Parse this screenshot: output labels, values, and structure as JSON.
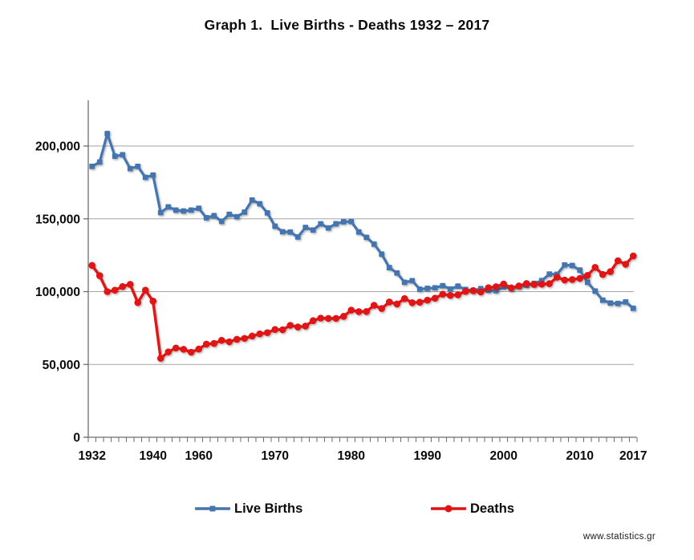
{
  "page": {
    "title": "Graph 1.  Live Births - Deaths 1932 – 2017",
    "watermark": "www.statistics.gr"
  },
  "legend": {
    "items": [
      {
        "label": "Live Births",
        "marker": "square",
        "color": "#4575AE"
      },
      {
        "label": "Deaths",
        "marker": "circle",
        "color": "#E01212"
      }
    ]
  },
  "chart_data": {
    "type": "line",
    "title": "Graph 1.  Live Births - Deaths 1932 – 2017",
    "xlabel": "",
    "ylabel": "",
    "grid": "horizontal-only",
    "legend_position": "bottom",
    "note": "Categorical x axis: yearly data 1932-1940 and 1955-2017; war years 1941-1954 absent, line connects 1940 directly to 1955.",
    "ylim": [
      0,
      231000
    ],
    "yticks": [
      0,
      50000,
      100000,
      150000,
      200000
    ],
    "ytick_labels": [
      "0",
      "50,000",
      "100,000",
      "150,000",
      "200,000"
    ],
    "xtick_labels": [
      {
        "label": "1932",
        "index": 0
      },
      {
        "label": "1940",
        "index": 8
      },
      {
        "label": "1960",
        "index": 14
      },
      {
        "label": "1970",
        "index": 24
      },
      {
        "label": "1980",
        "index": 34
      },
      {
        "label": "1990",
        "index": 44
      },
      {
        "label": "2000",
        "index": 54
      },
      {
        "label": "2010",
        "index": 64
      },
      {
        "label": "2017",
        "index": 71
      }
    ],
    "x_categories": [
      "1932",
      "1933",
      "1934",
      "1935",
      "1936",
      "1937",
      "1938",
      "1939",
      "1940",
      "1955",
      "1956",
      "1957",
      "1958",
      "1959",
      "1960",
      "1961",
      "1962",
      "1963",
      "1964",
      "1965",
      "1966",
      "1967",
      "1968",
      "1969",
      "1970",
      "1971",
      "1972",
      "1973",
      "1974",
      "1975",
      "1976",
      "1977",
      "1978",
      "1979",
      "1980",
      "1981",
      "1982",
      "1983",
      "1984",
      "1985",
      "1986",
      "1987",
      "1988",
      "1989",
      "1990",
      "1991",
      "1992",
      "1993",
      "1994",
      "1995",
      "1996",
      "1997",
      "1998",
      "1999",
      "2000",
      "2001",
      "2002",
      "2003",
      "2004",
      "2005",
      "2006",
      "2007",
      "2008",
      "2009",
      "2010",
      "2011",
      "2012",
      "2013",
      "2014",
      "2015",
      "2016",
      "2017"
    ],
    "series": [
      {
        "name": "Live Births",
        "color": "#4575AE",
        "marker": "square",
        "values": [
          186000,
          189000,
          208500,
          193000,
          194000,
          184500,
          186000,
          178500,
          180000,
          154263,
          158203,
          155960,
          155359,
          156000,
          157239,
          150716,
          152158,
          148249,
          153109,
          151448,
          154613,
          162839,
          160338,
          154077,
          144928,
          141126,
          140891,
          137526,
          144069,
          142273,
          146566,
          143739,
          146588,
          147965,
          148134,
          140953,
          137275,
          132608,
          125724,
          116481,
          112810,
          106392,
          107505,
          101657,
          102229,
          102620,
          104081,
          101799,
          103763,
          101495,
          100718,
          102038,
          100894,
          100643,
          103274,
          102282,
          103569,
          104420,
          105655,
          107545,
          112042,
          111926,
          118302,
          117933,
          114766,
          106428,
          100371,
          94134,
          92148,
          91847,
          92898,
          88553
        ]
      },
      {
        "name": "Deaths",
        "color": "#E01212",
        "marker": "circle",
        "values": [
          118000,
          111000,
          100000,
          101000,
          103500,
          105000,
          92500,
          101000,
          93500,
          54200,
          58600,
          61300,
          60400,
          58400,
          60563,
          63955,
          64425,
          66554,
          65554,
          67269,
          67912,
          69500,
          71000,
          71825,
          74009,
          73819,
          76859,
          75724,
          76363,
          80077,
          81818,
          81615,
          81616,
          83000,
          87282,
          86261,
          86345,
          90586,
          88397,
          92886,
          91469,
          95235,
          92407,
          92717,
          94152,
          95498,
          98231,
          97419,
          97807,
          100158,
          100740,
          99738,
          102668,
          103340,
          105219,
          102559,
          103915,
          105529,
          104942,
          105091,
          105476,
          109895,
          107979,
          108316,
          109084,
          111099,
          116670,
          111794,
          113740,
          121212,
          118792,
          124501
        ]
      }
    ],
    "colors": {
      "gridline": "#A6A6A6",
      "axis": "#6E6E6E",
      "text": "#0a0a0a",
      "background": "#FFFFFF"
    }
  }
}
